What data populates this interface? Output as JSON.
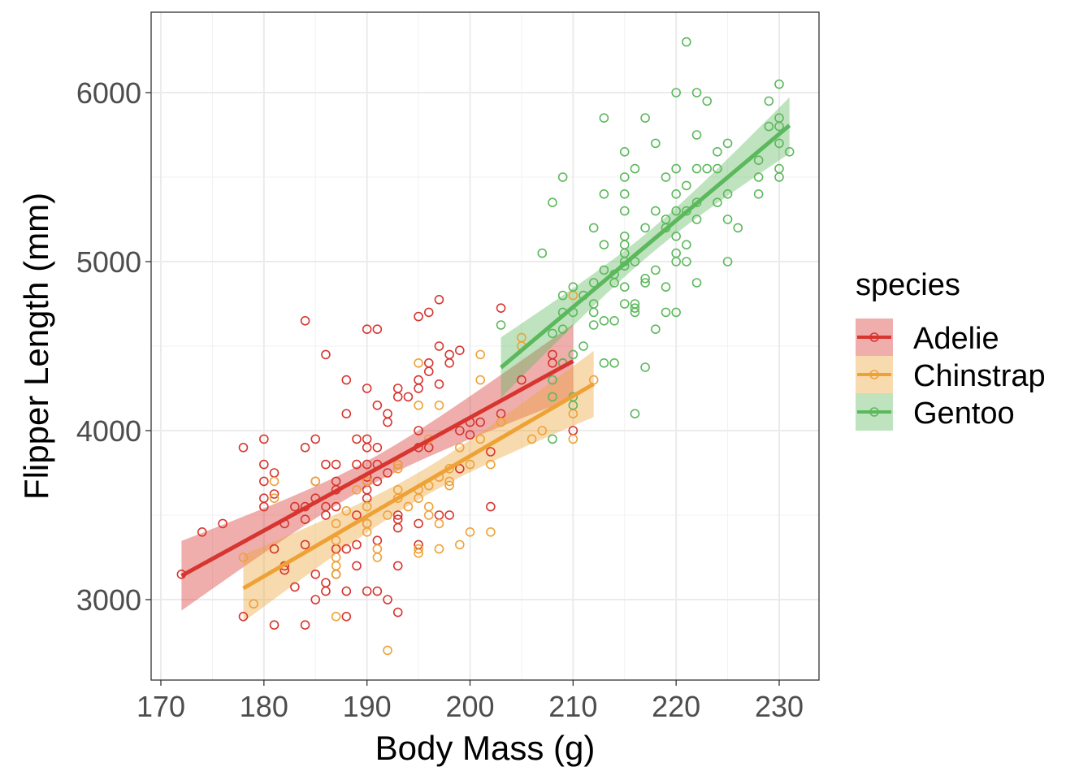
{
  "chart_data": {
    "type": "scatter",
    "xlabel": "Body Mass (g)",
    "ylabel": "Flipper Length (mm)",
    "xlim": [
      168,
      232
    ],
    "ylim": [
      2525,
      6475
    ],
    "xticks": [
      170,
      180,
      190,
      200,
      210,
      220,
      230
    ],
    "yticks": [
      3000,
      4000,
      5000,
      6000
    ],
    "grid": true,
    "smooth": "linear fit with 95% confidence band per species",
    "legend": {
      "title": "species",
      "position": "right"
    },
    "series": [
      {
        "name": "Adelie",
        "color": "#d7352f",
        "points": [
          [
            172,
            3150
          ],
          [
            174,
            3400
          ],
          [
            176,
            3450
          ],
          [
            178,
            3900
          ],
          [
            178,
            2900
          ],
          [
            180,
            3950
          ],
          [
            180,
            3800
          ],
          [
            180,
            3700
          ],
          [
            180,
            3600
          ],
          [
            180,
            3550
          ],
          [
            181,
            3750
          ],
          [
            181,
            3300
          ],
          [
            181,
            2850
          ],
          [
            181,
            3625
          ],
          [
            182,
            3450
          ],
          [
            182,
            3175
          ],
          [
            182,
            3200
          ],
          [
            183,
            3550
          ],
          [
            183,
            3075
          ],
          [
            184,
            4650
          ],
          [
            184,
            3900
          ],
          [
            184,
            3550
          ],
          [
            184,
            3475
          ],
          [
            184,
            3325
          ],
          [
            184,
            2850
          ],
          [
            185,
            3950
          ],
          [
            185,
            3700
          ],
          [
            185,
            3600
          ],
          [
            185,
            3150
          ],
          [
            185,
            3000
          ],
          [
            186,
            4450
          ],
          [
            186,
            3800
          ],
          [
            186,
            3550
          ],
          [
            186,
            3500
          ],
          [
            186,
            3100
          ],
          [
            186,
            3050
          ],
          [
            187,
            3800
          ],
          [
            187,
            3700
          ],
          [
            187,
            3550
          ],
          [
            187,
            3650
          ],
          [
            187,
            3300
          ],
          [
            187,
            3150
          ],
          [
            188,
            4300
          ],
          [
            188,
            4100
          ],
          [
            188,
            3300
          ],
          [
            188,
            3050
          ],
          [
            188,
            2900
          ],
          [
            189,
            3950
          ],
          [
            189,
            3800
          ],
          [
            189,
            3500
          ],
          [
            189,
            3325
          ],
          [
            189,
            3200
          ],
          [
            190,
            4600
          ],
          [
            190,
            4250
          ],
          [
            190,
            3950
          ],
          [
            190,
            3900
          ],
          [
            190,
            3800
          ],
          [
            190,
            3725
          ],
          [
            190,
            3700
          ],
          [
            190,
            3650
          ],
          [
            190,
            3600
          ],
          [
            190,
            3450
          ],
          [
            190,
            3050
          ],
          [
            191,
            4600
          ],
          [
            191,
            4150
          ],
          [
            191,
            3900
          ],
          [
            191,
            3800
          ],
          [
            191,
            3700
          ],
          [
            191,
            3350
          ],
          [
            191,
            3050
          ],
          [
            192,
            4100
          ],
          [
            192,
            4050
          ],
          [
            192,
            3750
          ],
          [
            192,
            3000
          ],
          [
            193,
            4250
          ],
          [
            193,
            4200
          ],
          [
            193,
            3800
          ],
          [
            193,
            3475
          ],
          [
            193,
            3500
          ],
          [
            193,
            3425
          ],
          [
            193,
            3200
          ],
          [
            193,
            2925
          ],
          [
            194,
            4200
          ],
          [
            195,
            4675
          ],
          [
            195,
            4300
          ],
          [
            195,
            4250
          ],
          [
            195,
            4000
          ],
          [
            195,
            3900
          ],
          [
            195,
            3450
          ],
          [
            195,
            3325
          ],
          [
            196,
            4700
          ],
          [
            196,
            4400
          ],
          [
            196,
            4350
          ],
          [
            196,
            3900
          ],
          [
            197,
            4775
          ],
          [
            197,
            4500
          ],
          [
            197,
            4275
          ],
          [
            197,
            3500
          ],
          [
            198,
            4450
          ],
          [
            198,
            4400
          ],
          [
            198,
            3500
          ],
          [
            199,
            4475
          ],
          [
            199,
            4000
          ],
          [
            199,
            3775
          ],
          [
            200,
            4050
          ],
          [
            200,
            3975
          ],
          [
            201,
            4050
          ],
          [
            202,
            3875
          ],
          [
            202,
            3550
          ],
          [
            203,
            4725
          ],
          [
            203,
            4100
          ],
          [
            205,
            4300
          ],
          [
            208,
            4450
          ],
          [
            208,
            4400
          ],
          [
            209,
            4400
          ],
          [
            210,
            4000
          ]
        ]
      },
      {
        "name": "Chinstrap",
        "color": "#eea236",
        "points": [
          [
            178,
            3250
          ],
          [
            179,
            2975
          ],
          [
            181,
            3700
          ],
          [
            181,
            3600
          ],
          [
            185,
            3700
          ],
          [
            187,
            3450
          ],
          [
            187,
            3350
          ],
          [
            187,
            3250
          ],
          [
            187,
            3200
          ],
          [
            187,
            3150
          ],
          [
            187,
            2900
          ],
          [
            188,
            3525
          ],
          [
            189,
            3650
          ],
          [
            190,
            3700
          ],
          [
            190,
            3550
          ],
          [
            190,
            3450
          ],
          [
            190,
            3400
          ],
          [
            191,
            3300
          ],
          [
            191,
            3250
          ],
          [
            192,
            3500
          ],
          [
            192,
            2700
          ],
          [
            193,
            3775
          ],
          [
            193,
            3650
          ],
          [
            193,
            3600
          ],
          [
            193,
            3800
          ],
          [
            194,
            3550
          ],
          [
            195,
            4400
          ],
          [
            195,
            4150
          ],
          [
            195,
            3650
          ],
          [
            195,
            3600
          ],
          [
            195,
            3300
          ],
          [
            195,
            3275
          ],
          [
            196,
            3950
          ],
          [
            196,
            3675
          ],
          [
            196,
            3550
          ],
          [
            196,
            3500
          ],
          [
            197,
            4150
          ],
          [
            197,
            3725
          ],
          [
            197,
            3450
          ],
          [
            197,
            3300
          ],
          [
            198,
            3775
          ],
          [
            198,
            3700
          ],
          [
            198,
            3675
          ],
          [
            199,
            3900
          ],
          [
            199,
            3325
          ],
          [
            200,
            3800
          ],
          [
            200,
            3400
          ],
          [
            201,
            4450
          ],
          [
            201,
            4300
          ],
          [
            201,
            3950
          ],
          [
            202,
            3800
          ],
          [
            202,
            3400
          ],
          [
            203,
            4050
          ],
          [
            205,
            4550
          ],
          [
            205,
            4500
          ],
          [
            206,
            3950
          ],
          [
            207,
            4000
          ],
          [
            210,
            4800
          ],
          [
            210,
            4100
          ],
          [
            210,
            3950
          ],
          [
            212,
            4300
          ]
        ]
      },
      {
        "name": "Gentoo",
        "color": "#5cb85c",
        "points": [
          [
            203,
            4625
          ],
          [
            207,
            5050
          ],
          [
            208,
            5350
          ],
          [
            208,
            4575
          ],
          [
            208,
            4300
          ],
          [
            208,
            4200
          ],
          [
            208,
            3950
          ],
          [
            209,
            5500
          ],
          [
            209,
            4800
          ],
          [
            209,
            4700
          ],
          [
            209,
            4600
          ],
          [
            209,
            4400
          ],
          [
            210,
            4850
          ],
          [
            210,
            4700
          ],
          [
            210,
            4450
          ],
          [
            210,
            4200
          ],
          [
            210,
            4150
          ],
          [
            211,
            4800
          ],
          [
            211,
            4500
          ],
          [
            212,
            5200
          ],
          [
            212,
            4875
          ],
          [
            212,
            4750
          ],
          [
            212,
            4700
          ],
          [
            212,
            4625
          ],
          [
            213,
            5850
          ],
          [
            213,
            5400
          ],
          [
            213,
            5100
          ],
          [
            213,
            4950
          ],
          [
            213,
            4650
          ],
          [
            213,
            4400
          ],
          [
            214,
            4925
          ],
          [
            214,
            4875
          ],
          [
            214,
            4650
          ],
          [
            214,
            4400
          ],
          [
            215,
            5650
          ],
          [
            215,
            5500
          ],
          [
            215,
            5400
          ],
          [
            215,
            5300
          ],
          [
            215,
            5150
          ],
          [
            215,
            5100
          ],
          [
            215,
            5050
          ],
          [
            215,
            5000
          ],
          [
            215,
            4975
          ],
          [
            215,
            4850
          ],
          [
            215,
            4750
          ],
          [
            216,
            5550
          ],
          [
            216,
            5000
          ],
          [
            216,
            4750
          ],
          [
            216,
            4725
          ],
          [
            216,
            4700
          ],
          [
            216,
            4100
          ],
          [
            217,
            5850
          ],
          [
            217,
            5200
          ],
          [
            217,
            4900
          ],
          [
            217,
            4875
          ],
          [
            217,
            4375
          ],
          [
            218,
            5700
          ],
          [
            218,
            5300
          ],
          [
            218,
            4950
          ],
          [
            218,
            4600
          ],
          [
            219,
            5500
          ],
          [
            219,
            5250
          ],
          [
            219,
            5200
          ],
          [
            219,
            4850
          ],
          [
            219,
            4700
          ],
          [
            220,
            6000
          ],
          [
            220,
            5550
          ],
          [
            220,
            5400
          ],
          [
            220,
            5300
          ],
          [
            220,
            5150
          ],
          [
            220,
            5050
          ],
          [
            220,
            5000
          ],
          [
            220,
            4700
          ],
          [
            221,
            6300
          ],
          [
            221,
            5450
          ],
          [
            221,
            5300
          ],
          [
            221,
            5100
          ],
          [
            221,
            5000
          ],
          [
            222,
            6000
          ],
          [
            222,
            5750
          ],
          [
            222,
            5550
          ],
          [
            222,
            5250
          ],
          [
            222,
            5350
          ],
          [
            222,
            4875
          ],
          [
            223,
            5950
          ],
          [
            223,
            5550
          ],
          [
            224,
            5650
          ],
          [
            224,
            5550
          ],
          [
            224,
            5350
          ],
          [
            225,
            5700
          ],
          [
            225,
            5400
          ],
          [
            225,
            5250
          ],
          [
            225,
            5000
          ],
          [
            226,
            5200
          ],
          [
            228,
            5600
          ],
          [
            228,
            5500
          ],
          [
            228,
            5400
          ],
          [
            229,
            5950
          ],
          [
            229,
            5800
          ],
          [
            230,
            6050
          ],
          [
            230,
            5850
          ],
          [
            230,
            5800
          ],
          [
            230,
            5700
          ],
          [
            230,
            5550
          ],
          [
            230,
            5500
          ],
          [
            231,
            5650
          ]
        ]
      }
    ]
  }
}
